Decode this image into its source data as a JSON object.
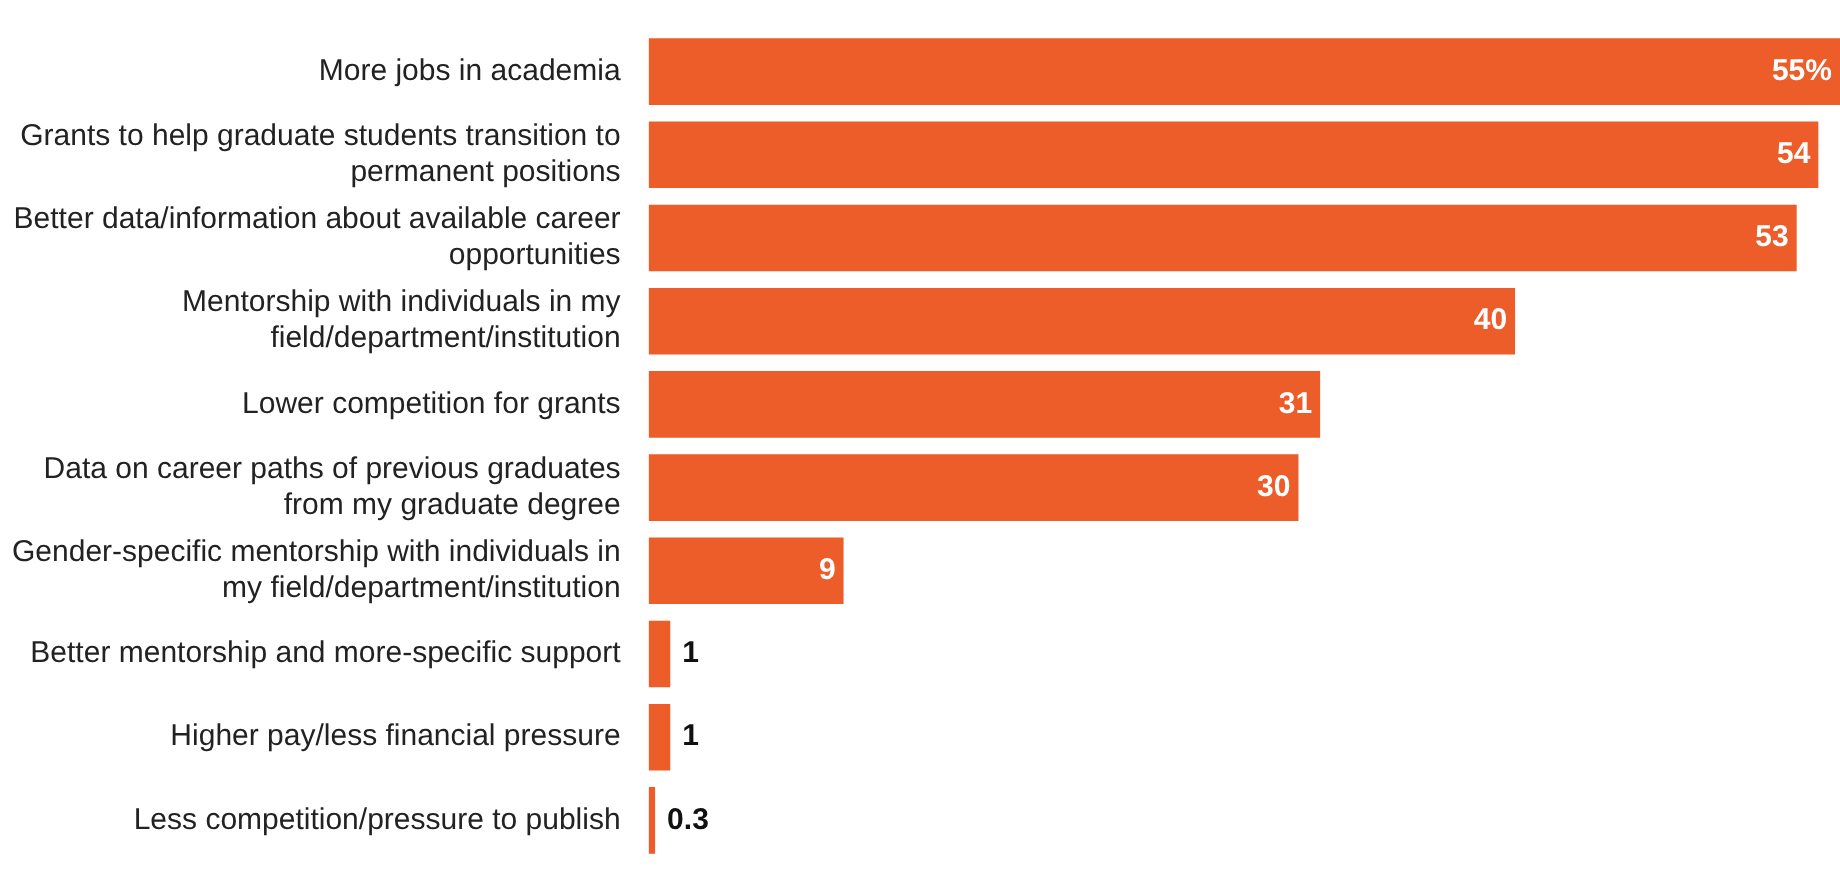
{
  "chart_data": {
    "type": "bar",
    "orientation": "horizontal",
    "categories": [
      "More jobs in academia",
      "Grants to help graduate students transition to permanent positions",
      "Better data/information about available career opportunities",
      "Mentorship with individuals in my field/department/institution",
      "Lower competition for grants",
      "Data on career paths of previous graduates from my graduate degree",
      "Gender-specific mentorship with individuals in my field/department/institution",
      "Better mentorship and more-specific support",
      "Higher pay/less financial pressure",
      "Less competition/pressure to publish"
    ],
    "values": [
      55,
      54,
      53,
      40,
      31,
      30,
      9,
      1,
      1,
      0.3
    ],
    "value_labels": [
      "55%",
      "54",
      "53",
      "40",
      "31",
      "30",
      "9",
      "1",
      "1",
      "0.3"
    ],
    "color": "#ec5d29"
  }
}
